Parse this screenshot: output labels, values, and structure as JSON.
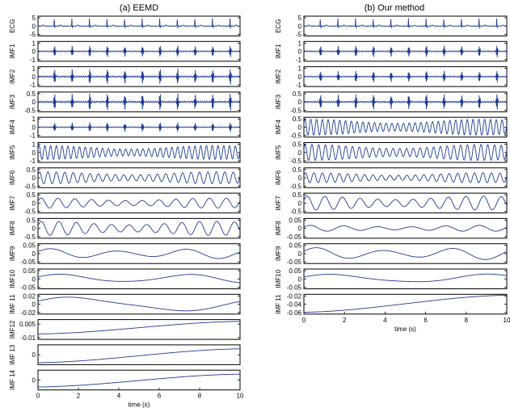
{
  "figure": {
    "x_axis_label": "time (s)",
    "x_ticks": [
      "0",
      "2",
      "4",
      "6",
      "8",
      "10"
    ],
    "line_color": "#1f3c93",
    "frame_color": "#000000"
  },
  "chart_data": [
    {
      "type": "line",
      "title": "(a) EEMD",
      "xlabel": "time (s)",
      "xlim": [
        0,
        10
      ],
      "panels": [
        {
          "ylabel": "ECG",
          "ytick_labels": [
            "5",
            "0",
            "-5"
          ],
          "ylim": [
            -5,
            5
          ],
          "kind": "ecg",
          "amplitude": 4,
          "frequency_hz": 1.15
        },
        {
          "ylabel": "IMF1",
          "ytick_labels": [
            "1",
            "0",
            "-1"
          ],
          "ylim": [
            -1,
            1
          ],
          "kind": "burst",
          "amplitude": 0.6,
          "frequency_hz": 1.15
        },
        {
          "ylabel": "IMF2",
          "ytick_labels": [
            "1",
            "0",
            "-1"
          ],
          "ylim": [
            -1,
            1
          ],
          "kind": "burst",
          "amplitude": 0.8,
          "frequency_hz": 1.15
        },
        {
          "ylabel": "IMF3",
          "ytick_labels": [
            "0.5",
            "0",
            "-0.5"
          ],
          "ylim": [
            -0.5,
            0.5
          ],
          "kind": "burst",
          "amplitude": 0.45,
          "frequency_hz": 1.15
        },
        {
          "ylabel": "IMF4",
          "ytick_labels": [
            "1",
            "0",
            "-1"
          ],
          "ylim": [
            -1,
            1
          ],
          "kind": "burst",
          "amplitude": 0.5,
          "frequency_hz": 1.15
        },
        {
          "ylabel": "IMF5",
          "ytick_labels": [
            "1",
            "0",
            "-1"
          ],
          "ylim": [
            -1,
            1
          ],
          "kind": "wave",
          "amplitude": 0.7,
          "frequency_hz": 3.5
        },
        {
          "ylabel": "IMF6",
          "ytick_labels": [
            "0.5",
            "0",
            "-0.5"
          ],
          "ylim": [
            -0.5,
            0.5
          ],
          "kind": "wave",
          "amplitude": 0.3,
          "frequency_hz": 2.4
        },
        {
          "ylabel": "IMF7",
          "ytick_labels": [
            "0.5",
            "0",
            "-0.5"
          ],
          "ylim": [
            -0.5,
            0.5
          ],
          "kind": "wave",
          "amplitude": 0.25,
          "frequency_hz": 1.2
        },
        {
          "ylabel": "IMF8",
          "ytick_labels": [
            "0.5",
            "0",
            "-0.5"
          ],
          "ylim": [
            -0.5,
            0.5
          ],
          "kind": "wave",
          "amplitude": 0.35,
          "frequency_hz": 1.15
        },
        {
          "ylabel": "IMF9",
          "ytick_labels": [
            "0.05",
            "0",
            "-0.05"
          ],
          "ylim": [
            -0.05,
            0.05
          ],
          "kind": "wave",
          "amplitude": 0.025,
          "frequency_hz": 0.3
        },
        {
          "ylabel": "IMF10",
          "ytick_labels": [
            "0.05",
            "0",
            "-0.05"
          ],
          "ylim": [
            -0.05,
            0.05
          ],
          "kind": "wave",
          "amplitude": 0.025,
          "frequency_hz": 0.16
        },
        {
          "ylabel": "IMF 11",
          "ytick_labels": [
            "0.02",
            "0",
            "-0.02"
          ],
          "ylim": [
            -0.02,
            0.02
          ],
          "kind": "wave",
          "amplitude": 0.016,
          "frequency_hz": 0.1
        },
        {
          "ylabel": "IMF12",
          "ytick_labels": [
            "0.005",
            "-0.01"
          ],
          "ylim": [
            -0.012,
            0.01
          ],
          "kind": "trend",
          "start": -0.006,
          "end": 0.008
        },
        {
          "ylabel": "IMF 13",
          "ytick_labels": [
            "0"
          ],
          "ylim": [
            -1,
            1
          ],
          "kind": "trend",
          "start": -0.8,
          "end": 0.6
        },
        {
          "ylabel": "IMF 14",
          "ytick_labels": [
            "0"
          ],
          "ylim": [
            -1,
            1
          ],
          "kind": "trend",
          "start": -0.7,
          "end": 0.6
        }
      ]
    },
    {
      "type": "line",
      "title": "(b) Our method",
      "xlabel": "time (s)",
      "xlim": [
        0,
        10
      ],
      "panels": [
        {
          "ylabel": "ECG",
          "ytick_labels": [
            "5",
            "0",
            "-5"
          ],
          "ylim": [
            -5,
            5
          ],
          "kind": "ecg",
          "amplitude": 4,
          "frequency_hz": 1.15
        },
        {
          "ylabel": "IMF1",
          "ytick_labels": [
            "1",
            "0",
            "-1"
          ],
          "ylim": [
            -1,
            1
          ],
          "kind": "burst",
          "amplitude": 0.6,
          "frequency_hz": 1.15
        },
        {
          "ylabel": "IMF2",
          "ytick_labels": [
            "1",
            "0",
            "-1"
          ],
          "ylim": [
            -1,
            1
          ],
          "kind": "burst",
          "amplitude": 0.6,
          "frequency_hz": 1.15
        },
        {
          "ylabel": "IMF3",
          "ytick_labels": [
            "0.5",
            "0",
            "-0.5"
          ],
          "ylim": [
            -0.5,
            0.5
          ],
          "kind": "burst",
          "amplitude": 0.4,
          "frequency_hz": 1.15
        },
        {
          "ylabel": "IMF4",
          "ytick_labels": [
            "0.5",
            "0",
            "-0.5"
          ],
          "ylim": [
            -0.5,
            0.5
          ],
          "kind": "wave",
          "amplitude": 0.4,
          "frequency_hz": 3.5
        },
        {
          "ylabel": "IMF5",
          "ytick_labels": [
            "0.5",
            "0",
            "-0.5"
          ],
          "ylim": [
            -0.5,
            0.5
          ],
          "kind": "wave",
          "amplitude": 0.4,
          "frequency_hz": 3.0
        },
        {
          "ylabel": "IMF6",
          "ytick_labels": [
            "0.5",
            "0",
            "-0.5"
          ],
          "ylim": [
            -0.5,
            0.5
          ],
          "kind": "wave",
          "amplitude": 0.25,
          "frequency_hz": 2.4
        },
        {
          "ylabel": "IMF7",
          "ytick_labels": [
            "0.5",
            "0",
            "-0.5"
          ],
          "ylim": [
            -0.5,
            0.5
          ],
          "kind": "wave",
          "amplitude": 0.35,
          "frequency_hz": 1.15
        },
        {
          "ylabel": "IMF8",
          "ytick_labels": [
            "0.05",
            "0",
            "-0.05"
          ],
          "ylim": [
            -0.05,
            0.05
          ],
          "kind": "wave",
          "amplitude": 0.015,
          "frequency_hz": 0.6
        },
        {
          "ylabel": "IMF9",
          "ytick_labels": [
            "0.05",
            "0",
            "-0.05"
          ],
          "ylim": [
            -0.05,
            0.05
          ],
          "kind": "wave",
          "amplitude": 0.03,
          "frequency_hz": 0.3
        },
        {
          "ylabel": "IMF10",
          "ytick_labels": [
            "0.05",
            "0",
            "-0.05"
          ],
          "ylim": [
            -0.05,
            0.05
          ],
          "kind": "wave",
          "amplitude": 0.025,
          "frequency_hz": 0.13
        },
        {
          "ylabel": "IMF 11",
          "ytick_labels": [
            "-0.02",
            "-0.04",
            "-0.06"
          ],
          "ylim": [
            -0.062,
            -0.018
          ],
          "kind": "trend",
          "start": -0.058,
          "end": -0.02
        }
      ]
    }
  ]
}
